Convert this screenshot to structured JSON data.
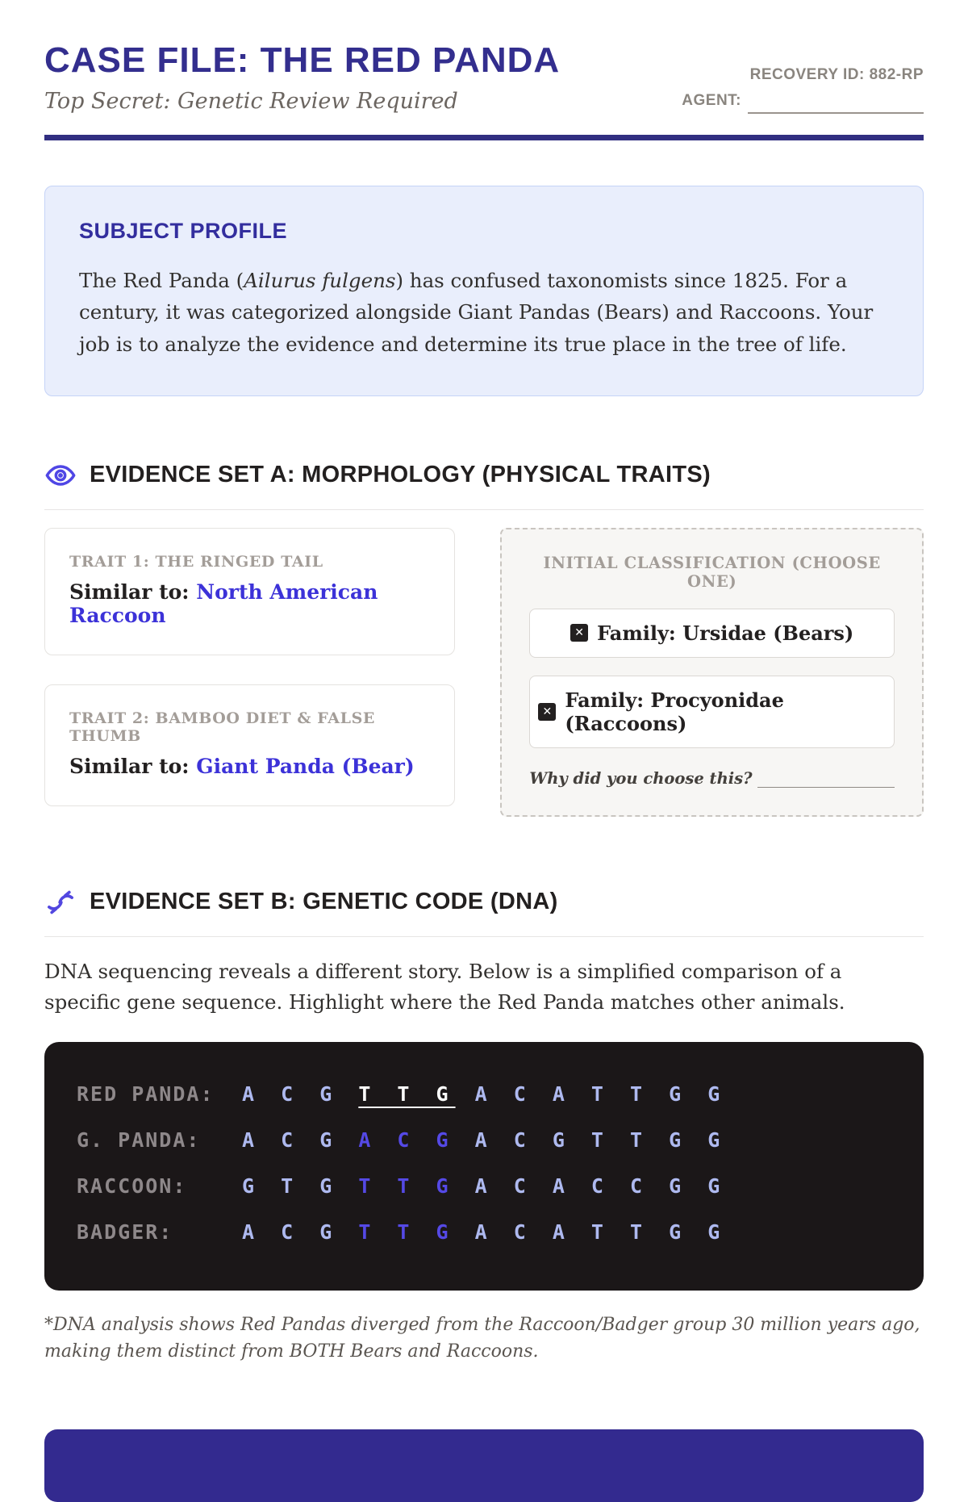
{
  "header": {
    "title": "CASE FILE: THE RED PANDA",
    "subtitle": "Top Secret: Genetic Review Required",
    "recovery_id": "RECOVERY ID: 882-RP",
    "agent_label": "AGENT:"
  },
  "profile": {
    "heading": "SUBJECT PROFILE",
    "body_prefix": "The Red Panda (",
    "species_italic": "Ailurus fulgens",
    "body_suffix": ") has confused taxonomists since 1825. For a century, it was categorized alongside Giant Pandas (Bears) and Raccoons. Your job is to analyze the evidence and determine its true place in the tree of life."
  },
  "section_a": {
    "heading": "EVIDENCE SET A: MORPHOLOGY (PHYSICAL TRAITS)",
    "icon": "eye-icon",
    "traits": [
      {
        "label": "TRAIT 1: THE RINGED TAIL",
        "similar_label": "Similar to:",
        "similar_value": "North American Raccoon"
      },
      {
        "label": "TRAIT 2: BAMBOO DIET & FALSE THUMB",
        "similar_label": "Similar to:",
        "similar_value": "Giant Panda (Bear)"
      }
    ],
    "classification": {
      "heading": "INITIAL CLASSIFICATION (CHOOSE ONE)",
      "options": [
        {
          "label": "Family: Ursidae (Bears)"
        },
        {
          "label": "Family: Procyonidae (Raccoons)"
        }
      ],
      "why_prompt": "Why did you choose this?"
    }
  },
  "section_b": {
    "heading": "EVIDENCE SET B: GENETIC CODE (DNA)",
    "icon": "dna-icon",
    "intro": "DNA sequencing reveals a different story. Below is a simplified comparison of a specific gene sequence. Highlight where the Red Panda matches other animals.",
    "dna_rows": [
      {
        "label": "RED PANDA:",
        "segments": [
          {
            "text": "A C G ",
            "style": "base"
          },
          {
            "text": "T T G",
            "style": "match-self"
          },
          {
            "text": " A C A T T G G",
            "style": "base"
          }
        ]
      },
      {
        "label": "G. PANDA:",
        "segments": [
          {
            "text": "A C G ",
            "style": "base"
          },
          {
            "text": "A C G",
            "style": "match"
          },
          {
            "text": " A C G T T G G",
            "style": "base"
          }
        ]
      },
      {
        "label": "RACCOON:",
        "segments": [
          {
            "text": "G T G ",
            "style": "base"
          },
          {
            "text": "T T G",
            "style": "match"
          },
          {
            "text": " A C A C C G G",
            "style": "base"
          }
        ]
      },
      {
        "label": "BADGER:",
        "segments": [
          {
            "text": "A C G ",
            "style": "base"
          },
          {
            "text": "T T G",
            "style": "match"
          },
          {
            "text": " A C A T T G G",
            "style": "base"
          }
        ]
      }
    ],
    "footnote": "*DNA analysis shows Red Pandas diverged from the Raccoon/Badger group 30 million years ago, making them distinct from BOTH Bears and Raccoons."
  },
  "icons": {
    "ballot_x": "✕"
  },
  "colors": {
    "heading_indigo": "#332e8e",
    "rule_indigo": "#312e81",
    "accent_blue": "#3c32d8",
    "icon_indigo": "#4f46e5",
    "profile_bg": "#e9eefc",
    "profile_border": "#c5d3f7",
    "dna_bg": "#1b1718",
    "dna_base": "#aeb9ef",
    "dna_match": "#5549e6",
    "dna_match_self": "#fafaf9",
    "muted_gray": "#a39d98",
    "verdict_bg": "#332a8f"
  }
}
